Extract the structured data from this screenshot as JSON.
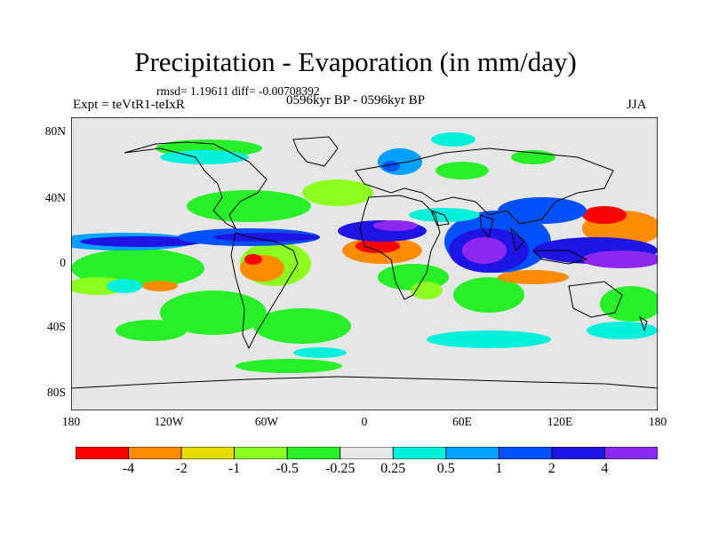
{
  "title": "Precipitation - Evaporation (in mm/day)",
  "stats": "rmsd= 1.19611 diff= -0.00708392",
  "experiment": "Expt = teVtR1-teIxR",
  "period": "0596kyr BP - 0596kyr BP",
  "season": "JJA",
  "lat_labels": [
    "80N",
    "40N",
    "0",
    "40S",
    "80S"
  ],
  "lon_labels": [
    "180",
    "120W",
    "60W",
    "0",
    "60E",
    "120E",
    "180"
  ],
  "colorbar": {
    "labels": [
      "-4",
      "-2",
      "-1",
      "-0.5",
      "-0.25",
      "0.25",
      "0.5",
      "1",
      "2",
      "4"
    ],
    "colors": [
      "#ff0000",
      "#ff8c00",
      "#e6dc00",
      "#8cff1e",
      "#28f028",
      "#e6e6e6",
      "#00f0dc",
      "#00a0ff",
      "#0050ff",
      "#1e14e6",
      "#8c28f0"
    ]
  }
}
